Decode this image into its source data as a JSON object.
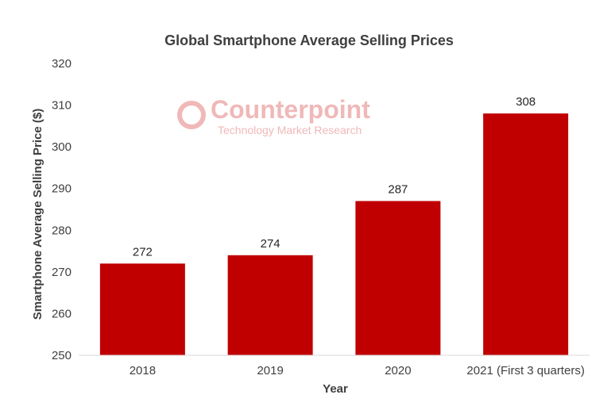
{
  "chart_data": {
    "type": "bar",
    "title": "Global Smartphone Average Selling Prices",
    "xlabel": "Year",
    "ylabel": "Smartphone Average Selling Price ($)",
    "categories": [
      "2018",
      "2019",
      "2020",
      "2021 (First 3 quarters)"
    ],
    "values": [
      272,
      274,
      287,
      308
    ],
    "data_labels": [
      "272",
      "274",
      "287",
      "308"
    ],
    "ylim": [
      250,
      320
    ],
    "yticks": [
      "250",
      "260",
      "270",
      "280",
      "290",
      "300",
      "310",
      "320"
    ],
    "grid": false,
    "legend": "none",
    "bar_color": "#c00000"
  },
  "watermark": {
    "brand": "Counterpoint",
    "tagline": "Technology Market Research",
    "color": "#f0b8b8"
  }
}
